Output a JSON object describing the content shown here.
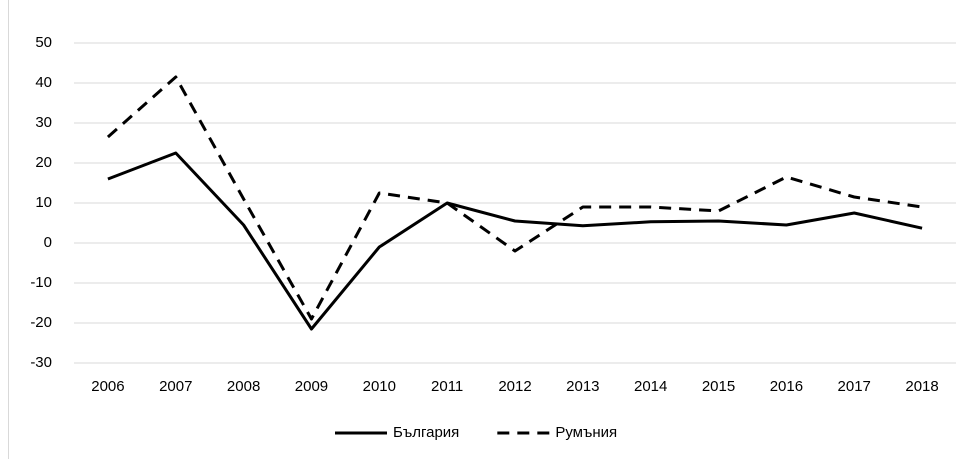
{
  "chart_data": {
    "type": "line",
    "categories": [
      "2006",
      "2007",
      "2008",
      "2009",
      "2010",
      "2011",
      "2012",
      "2013",
      "2014",
      "2015",
      "2016",
      "2017",
      "2018"
    ],
    "series": [
      {
        "name": "България",
        "color": "#000000",
        "dash": "solid",
        "values": [
          16,
          22.5,
          4.5,
          -21.5,
          -1,
          10,
          5.5,
          4.3,
          5.3,
          5.5,
          4.5,
          7.5,
          3.7
        ]
      },
      {
        "name": "Румъния",
        "color": "#000000",
        "dash": "dashed",
        "values": [
          26.5,
          41.5,
          11,
          -19,
          12.5,
          10,
          -2,
          9,
          9,
          8,
          16.5,
          11.5,
          9
        ]
      }
    ],
    "ylim": [
      -30,
      50
    ],
    "yticks": [
      -30,
      -20,
      -10,
      0,
      10,
      20,
      30,
      40,
      50
    ],
    "grid": true,
    "legend": "bottom"
  }
}
